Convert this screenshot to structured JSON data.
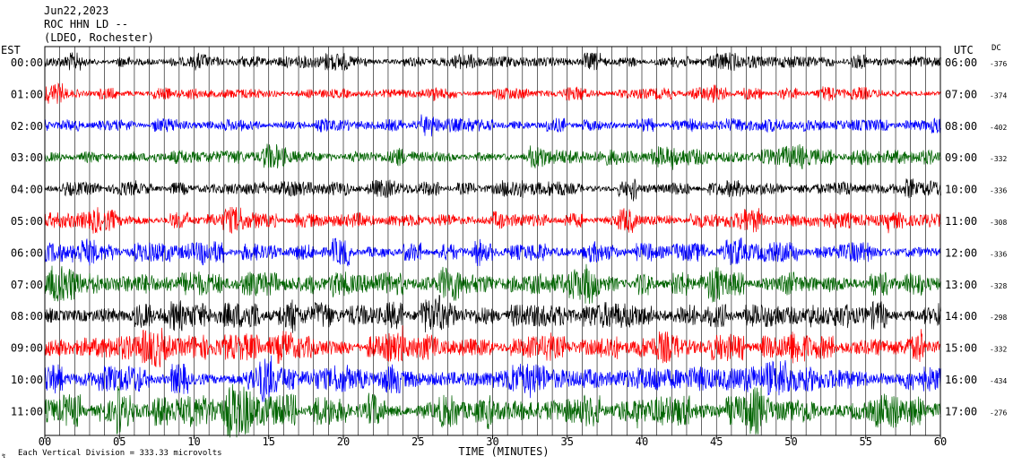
{
  "header": {
    "date": "Jun22,2023",
    "station": "ROC HHN LD --",
    "network": "(LDEO, Rochester)",
    "left_zone": "EST",
    "right_zone": "UTC",
    "dc_label": "DC"
  },
  "footer": {
    "scale_note": "Each Vertical Division =  333.33 microvolts",
    "xlabel": "TIME (MINUTES)"
  },
  "chart_data": {
    "type": "line",
    "subtype": "helicorder",
    "x_ticks": [
      "00",
      "05",
      "10",
      "15",
      "20",
      "25",
      "30",
      "35",
      "40",
      "45",
      "50",
      "55",
      "60"
    ],
    "xlim": [
      0,
      60
    ],
    "grid": "vertical-per-minute",
    "trace_colors": [
      "#000000",
      "#ff0000",
      "#0000ff",
      "#006400"
    ],
    "rows": [
      {
        "local": "00:00",
        "utc": "06:00",
        "dc": "-376",
        "amplitude": 0.45
      },
      {
        "local": "01:00",
        "utc": "07:00",
        "dc": "-374",
        "amplitude": 0.45
      },
      {
        "local": "02:00",
        "utc": "08:00",
        "dc": "-402",
        "amplitude": 0.5
      },
      {
        "local": "03:00",
        "utc": "09:00",
        "dc": "-332",
        "amplitude": 0.6
      },
      {
        "local": "04:00",
        "utc": "10:00",
        "dc": "-336",
        "amplitude": 0.6
      },
      {
        "local": "05:00",
        "utc": "11:00",
        "dc": "-308",
        "amplitude": 0.6
      },
      {
        "local": "06:00",
        "utc": "12:00",
        "dc": "-336",
        "amplitude": 0.7
      },
      {
        "local": "07:00",
        "utc": "13:00",
        "dc": "-328",
        "amplitude": 0.9
      },
      {
        "local": "08:00",
        "utc": "14:00",
        "dc": "-298",
        "amplitude": 1.0
      },
      {
        "local": "09:00",
        "utc": "15:00",
        "dc": "-332",
        "amplitude": 1.0
      },
      {
        "local": "10:00",
        "utc": "16:00",
        "dc": "-434",
        "amplitude": 1.1
      },
      {
        "local": "11:00",
        "utc": "17:00",
        "dc": "-276",
        "amplitude": 1.2
      }
    ]
  }
}
